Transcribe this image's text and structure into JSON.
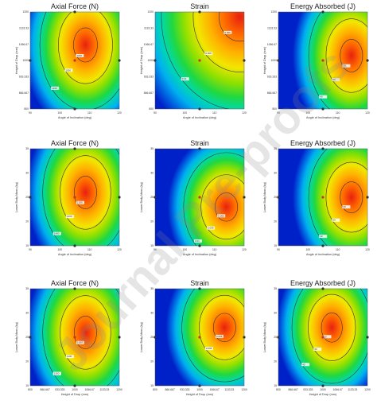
{
  "watermark": "Journal Pre-proofs",
  "chart_data": [
    {
      "type": "heatmap",
      "title": "Axial Force (N)",
      "xlabel": "Angle of Inclination (deg)",
      "ylabel": "Height of Drop (mm)",
      "xticks": [
        "90",
        "100",
        "110",
        "120"
      ],
      "yticks": [
        "800",
        "866.667",
        "933.333",
        "1000",
        "1066.67",
        "1133.33",
        "1200"
      ],
      "peak": {
        "x": 0.62,
        "y": 0.66,
        "rx": 0.32,
        "ry": 0.42
      },
      "contour_labels": [
        "1200",
        "1300",
        "1400"
      ]
    },
    {
      "type": "heatmap",
      "title": "Strain",
      "xlabel": "Angle of Inclination (deg)",
      "ylabel": "Height of Drop (mm)",
      "xticks": [
        "90",
        "100",
        "110",
        "120"
      ],
      "yticks": [
        "800",
        "866.667",
        "933.333",
        "1000",
        "1066.67",
        "1133.33",
        "1200"
      ],
      "peak": {
        "x": 0.95,
        "y": 0.95,
        "rx": 0.55,
        "ry": 0.6
      },
      "contour_labels": [
        "0.006",
        "0.008",
        "0.01"
      ]
    },
    {
      "type": "heatmap",
      "title": "Energy Absorbed (J)",
      "xlabel": "Angle of Inclination (deg)",
      "ylabel": "Height of Drop (mm)",
      "xticks": [
        "90",
        "100",
        "110",
        "120"
      ],
      "yticks": [
        "800",
        "866.667",
        "933.333",
        "1000",
        "1066.67",
        "1133.33",
        "1200"
      ],
      "peak": {
        "x": 0.82,
        "y": 0.55,
        "rx": 0.3,
        "ry": 0.4
      },
      "contour_labels": [
        "20",
        "30",
        "40"
      ]
    },
    {
      "type": "heatmap",
      "title": "Axial Force (N)",
      "xlabel": "Angle of Inclination (deg)",
      "ylabel": "Lower Body Mass (kg)",
      "xticks": [
        "90",
        "100",
        "110",
        "120"
      ],
      "yticks": [
        "15",
        "20",
        "25",
        "30",
        "35"
      ],
      "peak": {
        "x": 0.62,
        "y": 0.55,
        "rx": 0.3,
        "ry": 0.4
      },
      "contour_labels": [
        "1200",
        "1300",
        "1400"
      ]
    },
    {
      "type": "heatmap",
      "title": "Strain",
      "xlabel": "Angle of Inclination (deg)",
      "ylabel": "Lower Body Mass (kg)",
      "xticks": [
        "90",
        "100",
        "110",
        "120"
      ],
      "yticks": [
        "15",
        "20",
        "25",
        "30",
        "35"
      ],
      "peak": {
        "x": 0.8,
        "y": 0.4,
        "rx": 0.3,
        "ry": 0.35
      },
      "contour_labels": [
        "0.006",
        "0.008",
        "0.01"
      ]
    },
    {
      "type": "heatmap",
      "title": "Energy Absorbed (J)",
      "xlabel": "Angle of Inclination (deg)",
      "ylabel": "Lower Body Mass (kg)",
      "xticks": [
        "90",
        "100",
        "110",
        "120"
      ],
      "yticks": [
        "15",
        "20",
        "25",
        "30",
        "35"
      ],
      "peak": {
        "x": 0.82,
        "y": 0.5,
        "rx": 0.3,
        "ry": 0.38
      },
      "contour_labels": [
        "20",
        "30",
        "40"
      ]
    },
    {
      "type": "heatmap",
      "title": "Axial Force (N)",
      "xlabel": "Height of Drop (mm)",
      "ylabel": "Lower Body Mass (kg)",
      "xticks": [
        "800",
        "866.667",
        "933.333",
        "1000",
        "1066.67",
        "1133.33",
        "1200"
      ],
      "yticks": [
        "15",
        "20",
        "25",
        "30",
        "35"
      ],
      "peak": {
        "x": 0.62,
        "y": 0.55,
        "rx": 0.3,
        "ry": 0.4
      },
      "contour_labels": [
        "1000",
        "1100",
        "1200",
        "1300"
      ]
    },
    {
      "type": "heatmap",
      "title": "Strain",
      "xlabel": "Height of Drop (mm)",
      "ylabel": "Lower Body Mass (kg)",
      "xticks": [
        "800",
        "866.667",
        "933.333",
        "1000",
        "1066.67",
        "1133.33",
        "1200"
      ],
      "yticks": [
        "15",
        "20",
        "25",
        "30",
        "35"
      ],
      "peak": {
        "x": 0.78,
        "y": 0.6,
        "rx": 0.3,
        "ry": 0.35
      },
      "contour_labels": [
        "0.006",
        "0.008"
      ]
    },
    {
      "type": "heatmap",
      "title": "Energy Absorbed (J)",
      "xlabel": "Height of Drop (mm)",
      "ylabel": "Lower Body Mass (kg)",
      "xticks": [
        "800",
        "866.667",
        "933.333",
        "1000",
        "1066.67",
        "1133.33",
        "1200"
      ],
      "yticks": [
        "15",
        "20",
        "25",
        "30",
        "35"
      ],
      "peak": {
        "x": 0.6,
        "y": 0.6,
        "rx": 0.28,
        "ry": 0.36
      },
      "contour_labels": [
        "20",
        "30",
        "40"
      ]
    }
  ]
}
